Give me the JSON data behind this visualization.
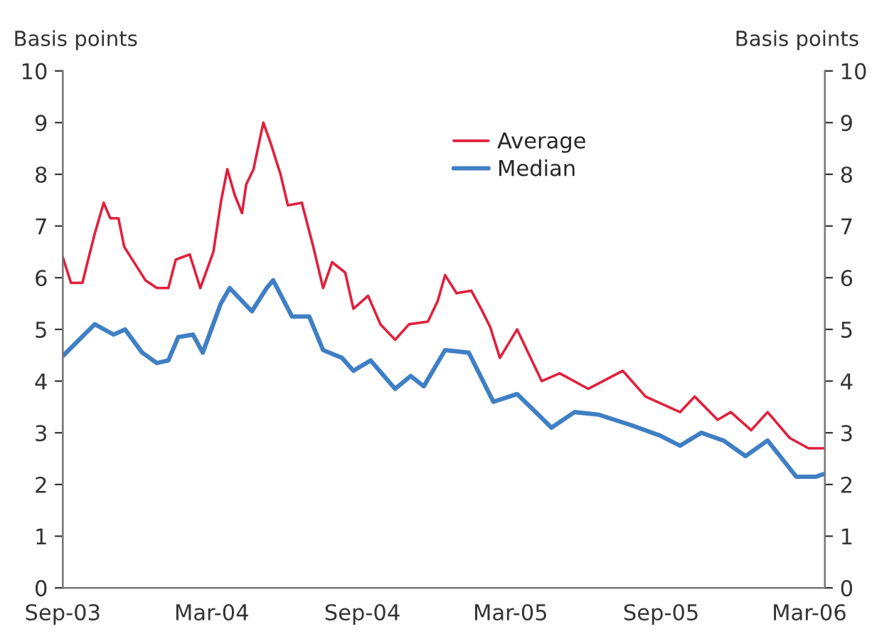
{
  "chart_data": {
    "type": "line",
    "ylabel": "Basis points",
    "y2label": "Basis points",
    "xlim": [
      "2003-09-01",
      "2006-03-20"
    ],
    "xticks": [
      {
        "value": "2003-09-01",
        "label": "Sep-03"
      },
      {
        "value": "2004-03-01",
        "label": "Mar-04"
      },
      {
        "value": "2004-09-01",
        "label": "Sep-04"
      },
      {
        "value": "2005-03-01",
        "label": "Mar-05"
      },
      {
        "value": "2005-09-01",
        "label": "Sep-05"
      },
      {
        "value": "2006-03-01",
        "label": "Mar-06"
      }
    ],
    "ylim": [
      0,
      10
    ],
    "yticks": [
      0,
      1,
      2,
      3,
      4,
      5,
      6,
      7,
      8,
      9,
      10
    ],
    "y2lim": [
      0,
      10
    ],
    "y2ticks": [
      0,
      1,
      2,
      3,
      4,
      5,
      6,
      7,
      8,
      9,
      10
    ],
    "grid": false,
    "legend": "top",
    "marker": "none",
    "line_style": "solid",
    "series": [
      {
        "name": "Average",
        "color": "#e0203c",
        "x": [
          "2003-09-01",
          "2003-09-11",
          "2003-09-25",
          "2003-10-02",
          "2003-10-10",
          "2003-10-21",
          "2003-10-29",
          "2003-11-08",
          "2003-11-15",
          "2003-11-25",
          "2003-12-11",
          "2003-12-25",
          "2004-01-08",
          "2004-01-17",
          "2004-02-03",
          "2004-02-16",
          "2004-03-03",
          "2004-03-12",
          "2004-03-20",
          "2004-03-29",
          "2004-04-07",
          "2004-04-12",
          "2004-04-21",
          "2004-05-03",
          "2004-05-12",
          "2004-05-24",
          "2004-06-02",
          "2004-06-19",
          "2004-07-03",
          "2004-07-15",
          "2004-07-26",
          "2004-08-11",
          "2004-08-21",
          "2004-09-08",
          "2004-09-23",
          "2004-10-11",
          "2004-10-28",
          "2004-11-20",
          "2004-12-02",
          "2004-12-11",
          "2004-12-25",
          "2005-01-12",
          "2005-01-24",
          "2005-02-04",
          "2005-02-16",
          "2005-03-09",
          "2005-04-08",
          "2005-04-30",
          "2005-06-04",
          "2005-07-16",
          "2005-08-13",
          "2005-09-24",
          "2005-10-12",
          "2005-11-09",
          "2005-11-25",
          "2005-12-20",
          "2006-01-09",
          "2006-02-05",
          "2006-02-28",
          "2006-03-18"
        ],
        "values": [
          6.4,
          5.9,
          5.9,
          6.35,
          6.85,
          7.45,
          7.15,
          7.15,
          6.6,
          6.35,
          5.95,
          5.8,
          5.8,
          6.35,
          6.45,
          5.8,
          6.5,
          7.45,
          8.1,
          7.6,
          7.25,
          7.8,
          8.1,
          9.0,
          8.6,
          8.0,
          7.4,
          7.45,
          6.6,
          5.8,
          6.3,
          6.1,
          5.4,
          5.65,
          5.1,
          4.8,
          5.1,
          5.15,
          5.55,
          6.05,
          5.7,
          5.75,
          5.4,
          5.05,
          4.45,
          5.0,
          4.0,
          4.15,
          3.85,
          4.2,
          3.7,
          3.4,
          3.7,
          3.25,
          3.4,
          3.05,
          3.4,
          2.9,
          2.7,
          2.7
        ]
      },
      {
        "name": "Median",
        "color": "#3f7fc4",
        "x": [
          "2003-09-02",
          "2003-10-10",
          "2003-11-02",
          "2003-11-16",
          "2003-12-07",
          "2003-12-25",
          "2004-01-08",
          "2004-01-20",
          "2004-02-07",
          "2004-02-19",
          "2004-03-12",
          "2004-03-23",
          "2004-04-19",
          "2004-05-07",
          "2004-05-15",
          "2004-06-07",
          "2004-06-28",
          "2004-07-15",
          "2004-08-07",
          "2004-08-21",
          "2004-09-11",
          "2004-10-11",
          "2004-10-30",
          "2004-11-15",
          "2004-12-11",
          "2005-01-09",
          "2005-02-08",
          "2005-03-09",
          "2005-04-20",
          "2005-05-18",
          "2005-06-17",
          "2005-07-26",
          "2005-08-30",
          "2005-09-24",
          "2005-10-20",
          "2005-11-16",
          "2005-12-13",
          "2006-01-09",
          "2006-02-13",
          "2006-03-09",
          "2006-03-18"
        ],
        "values": [
          4.5,
          5.1,
          4.9,
          5.0,
          4.55,
          4.35,
          4.4,
          4.85,
          4.9,
          4.55,
          5.5,
          5.8,
          5.35,
          5.8,
          5.95,
          5.25,
          5.25,
          4.6,
          4.45,
          4.2,
          4.4,
          3.85,
          4.1,
          3.9,
          4.6,
          4.55,
          3.6,
          3.75,
          3.1,
          3.4,
          3.35,
          3.15,
          2.95,
          2.75,
          3.0,
          2.85,
          2.55,
          2.85,
          2.15,
          2.15,
          2.2
        ]
      }
    ]
  }
}
